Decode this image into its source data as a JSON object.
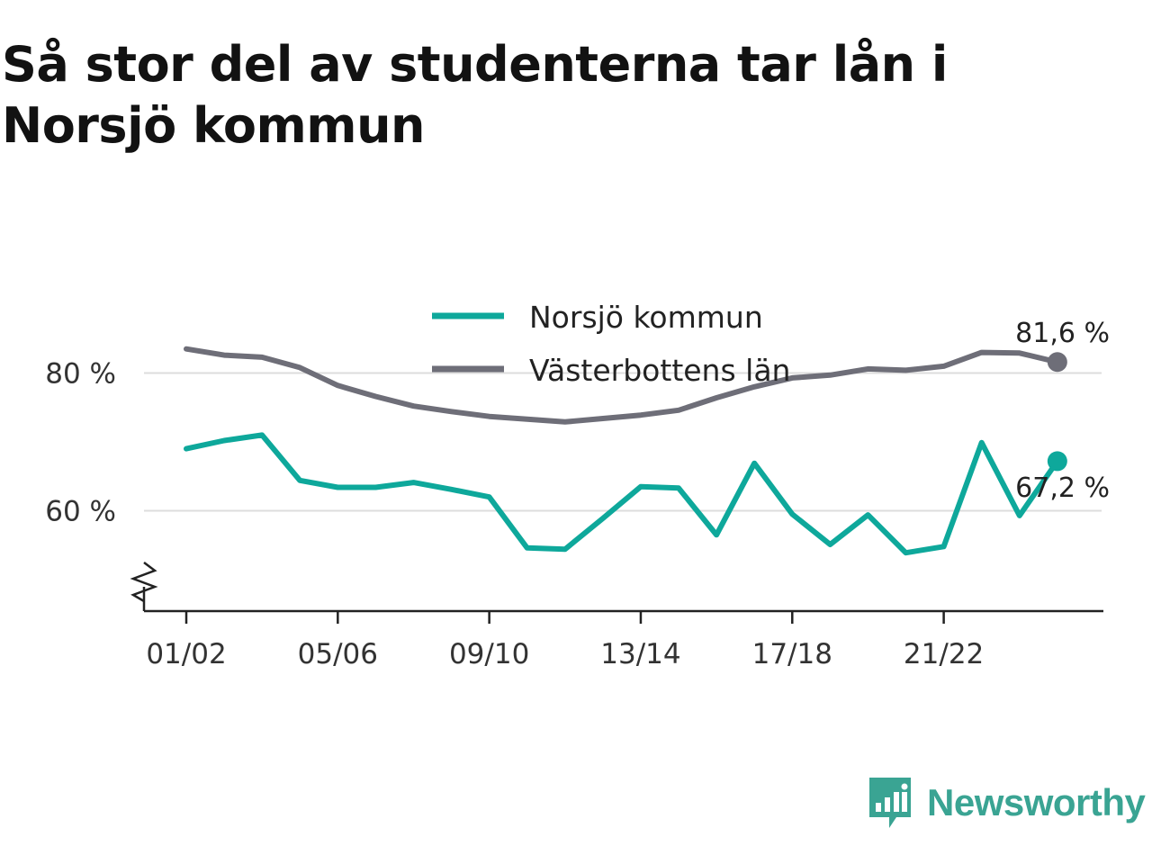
{
  "title": "Så stor del av studenterna tar lån i Norsjö kommun",
  "brand": {
    "name": "Newsworthy"
  },
  "colors": {
    "norsjo": "#0ea89b",
    "vasterbotten": "#6e6e78",
    "grid": "#dddddd",
    "axis": "#222222",
    "brand": "#3aa493"
  },
  "chart_data": {
    "type": "line",
    "x": [
      "01/02",
      "02/03",
      "03/04",
      "04/05",
      "05/06",
      "06/07",
      "07/08",
      "08/09",
      "09/10",
      "10/11",
      "11/12",
      "12/13",
      "13/14",
      "14/15",
      "15/16",
      "16/17",
      "17/18",
      "18/19",
      "19/20",
      "20/21",
      "21/22",
      "22/23",
      "23/24",
      "24/25"
    ],
    "x_tick_labels": [
      "01/02",
      "05/06",
      "09/10",
      "13/14",
      "17/18",
      "21/22"
    ],
    "y_tick_labels": [
      {
        "value": 60,
        "label": "60 %"
      },
      {
        "value": 80,
        "label": "80 %"
      }
    ],
    "ylim": [
      46,
      90
    ],
    "y_axis_break": true,
    "grid": true,
    "legend_placement": "top-center",
    "series": [
      {
        "name": "Norsjö kommun",
        "color": "#0ea89b",
        "end_label": "67,2 %",
        "values": [
          69.0,
          70.2,
          71.0,
          64.4,
          63.4,
          63.4,
          64.1,
          63.1,
          62.0,
          54.6,
          54.4,
          58.9,
          63.5,
          63.3,
          56.5,
          66.9,
          59.5,
          55.1,
          59.4,
          53.9,
          54.8,
          69.9,
          59.3,
          67.2
        ]
      },
      {
        "name": "Västerbottens län",
        "color": "#6e6e78",
        "end_label": "81,6 %",
        "values": [
          83.5,
          82.6,
          82.3,
          80.8,
          78.2,
          76.6,
          75.2,
          74.4,
          73.7,
          73.3,
          72.9,
          73.4,
          73.9,
          74.6,
          76.4,
          78.0,
          79.3,
          79.7,
          80.6,
          80.4,
          81.0,
          83.0,
          82.9,
          81.6
        ]
      }
    ]
  }
}
